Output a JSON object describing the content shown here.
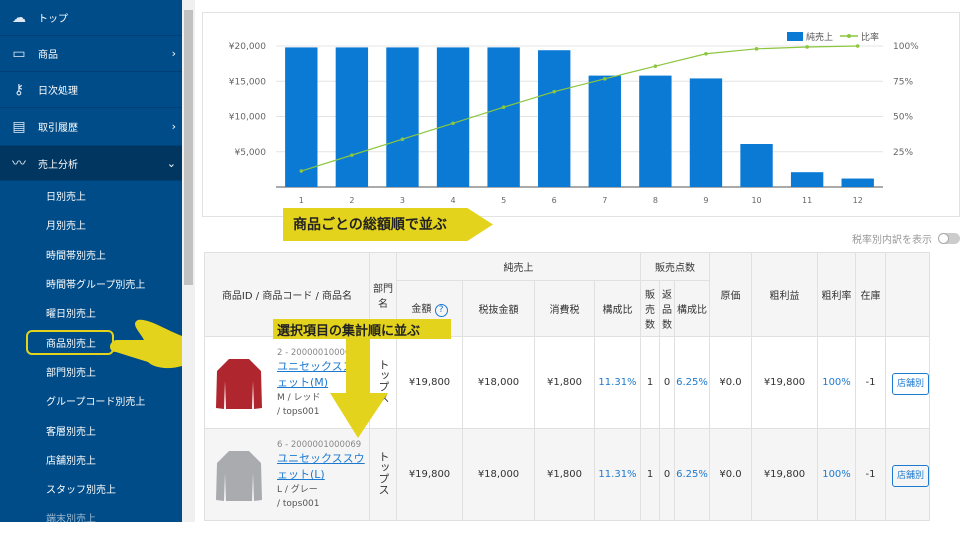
{
  "sidebar": {
    "items": [
      {
        "label": "トップ",
        "icon": "cloud-icon"
      },
      {
        "label": "商品",
        "icon": "box-icon",
        "chevron": "right"
      },
      {
        "label": "日次処理",
        "icon": "key-icon"
      },
      {
        "label": "取引履歴",
        "icon": "book-icon",
        "chevron": "right"
      },
      {
        "label": "売上分析",
        "icon": "chart-line-icon",
        "chevron": "down",
        "active": true
      }
    ],
    "subitems": [
      "日別売上",
      "月別売上",
      "時間帯別売上",
      "時間帯グループ別売上",
      "曜日別売上",
      "商品別売上",
      "部門別売上",
      "グループコード別売上",
      "客層別売上",
      "店舗別売上",
      "スタッフ別売上",
      "端末別売上"
    ],
    "selected": "商品別売上"
  },
  "annotations": {
    "arrow1": "商品ごとの総額順で並ぶ",
    "arrow2": "選択項目の集計順に並ぶ",
    "color": "#e4d31c"
  },
  "toggle": {
    "label": "税率別内訳を表示",
    "on": false
  },
  "chart_data": {
    "type": "bar",
    "categories": [
      "1",
      "2",
      "3",
      "4",
      "5",
      "6",
      "7",
      "8",
      "9",
      "10",
      "11",
      "12"
    ],
    "series": [
      {
        "name": "純売上",
        "type": "bar",
        "axis": "left",
        "color": "#0a7ad4",
        "values": [
          19800,
          19800,
          19800,
          19800,
          19800,
          19400,
          15800,
          15800,
          15400,
          6100,
          2100,
          1200
        ]
      },
      {
        "name": "比率",
        "type": "line",
        "axis": "right",
        "color": "#8cc63f",
        "values": [
          11.31,
          22.6,
          33.9,
          45.2,
          56.6,
          67.6,
          76.7,
          85.7,
          94.5,
          98.0,
          99.3,
          100
        ]
      }
    ],
    "yleft": {
      "ticks": [
        "¥5,000",
        "¥10,000",
        "¥15,000",
        "¥20,000"
      ],
      "range": [
        0,
        20000
      ]
    },
    "yright": {
      "ticks": [
        "25%",
        "50%",
        "75%",
        "100%"
      ],
      "range": [
        0,
        100
      ]
    },
    "legend": "top-right",
    "grid": true
  },
  "table": {
    "headers": {
      "product": "商品ID / 商品コード / 商品名",
      "dept": "部門名",
      "net_sales": "純売上",
      "amount": "金額",
      "excl_tax": "税抜金額",
      "tax": "消費税",
      "ratio": "構成比",
      "units": "販売点数",
      "sold": "販売数",
      "returned": "返品数",
      "units_ratio": "構成比",
      "cost": "原価",
      "gross": "粗利益",
      "margin": "粗利率",
      "stock": "在庫"
    },
    "rows": [
      {
        "id": "2 - 2000001000052",
        "name": "ユニセックススウェット(M)",
        "variant": "M / レッド",
        "code": "/ tops001",
        "dept": "トップス",
        "amount": "¥19,800",
        "excl_tax": "¥18,000",
        "tax": "¥1,800",
        "ratio": "11.31%",
        "sold": "1",
        "returned": "0",
        "units_ratio": "6.25%",
        "cost": "¥0.0",
        "gross": "¥19,800",
        "margin": "100%",
        "stock": "-1",
        "button": "店舗別",
        "color": "#b0262e"
      },
      {
        "id": "6 - 2000001000069",
        "name": "ユニセックススウェット(L)",
        "variant": "L / グレー",
        "code": "/ tops001",
        "dept": "トップス",
        "amount": "¥19,800",
        "excl_tax": "¥18,000",
        "tax": "¥1,800",
        "ratio": "11.31%",
        "sold": "1",
        "returned": "0",
        "units_ratio": "6.25%",
        "cost": "¥0.0",
        "gross": "¥19,800",
        "margin": "100%",
        "stock": "-1",
        "button": "店舗別",
        "color": "#a9abae"
      }
    ]
  }
}
